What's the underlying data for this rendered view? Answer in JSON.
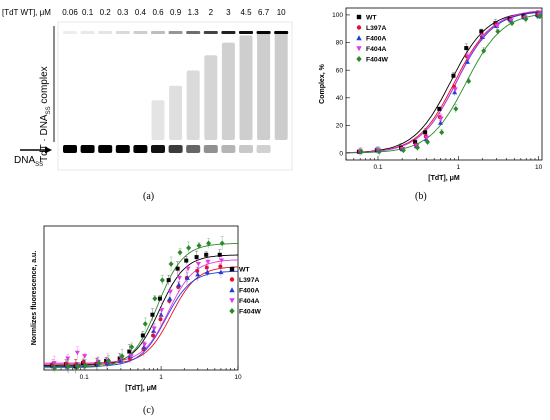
{
  "panel_a": {
    "header_label": "[TdT WT], μM",
    "concentrations": [
      "0.06",
      "0.1",
      "0.2",
      "0.3",
      "0.4",
      "0.6",
      "0.9",
      "1.3",
      "2",
      "3",
      "4.5",
      "6.7",
      "10"
    ],
    "complex_label": "TdT · DNA",
    "complex_sub": "SS",
    "complex_suffix": " complex",
    "free_label": "DNA",
    "free_sub": "SS",
    "complex_fraction": [
      0.02,
      0.04,
      0.06,
      0.1,
      0.15,
      0.22,
      0.38,
      0.55,
      0.72,
      0.86,
      0.94,
      0.97,
      0.99
    ],
    "caption": "(a)"
  },
  "panel_b": {
    "caption": "(b)"
  },
  "panel_c": {
    "caption": "(c)"
  },
  "chart_data": [
    {
      "type": "scatter",
      "title": "",
      "xlabel": "[TdT], μM",
      "ylabel": "Complex, %",
      "xscale": "log",
      "xlim": [
        0.04,
        11
      ],
      "ylim": [
        -5,
        105
      ],
      "xticks": [
        "0.1",
        "1",
        "10"
      ],
      "yticks": [
        "0",
        "20",
        "40",
        "60",
        "80",
        "100"
      ],
      "legend_position": "top-left",
      "x": [
        0.06,
        0.1,
        0.2,
        0.3,
        0.4,
        0.6,
        0.9,
        1.3,
        2,
        3,
        4.5,
        6.7,
        10
      ],
      "series": [
        {
          "name": "WT",
          "color": "#000000",
          "marker": "square",
          "values": [
            1,
            2,
            4,
            8,
            15,
            32,
            56,
            76,
            88,
            94,
            97,
            99,
            100
          ],
          "fit": {
            "ec50": 0.8,
            "hill": 1.9,
            "top": 103
          }
        },
        {
          "name": "L397A",
          "color": "#e8102a",
          "marker": "circle",
          "values": [
            1,
            2,
            3,
            6,
            12,
            26,
            48,
            70,
            84,
            93,
            96,
            98,
            100
          ],
          "fit": {
            "ec50": 0.9,
            "hill": 1.9,
            "top": 103
          }
        },
        {
          "name": "F400A",
          "color": "#1f3fd6",
          "marker": "triangle-up",
          "values": [
            1,
            2,
            3,
            5,
            10,
            22,
            44,
            66,
            84,
            92,
            96,
            98,
            99
          ],
          "fit": {
            "ec50": 0.95,
            "hill": 1.9,
            "top": 103
          }
        },
        {
          "name": "F404A",
          "color": "#e23ae5",
          "marker": "triangle-down",
          "values": [
            1,
            2,
            3,
            5,
            11,
            25,
            46,
            70,
            85,
            92,
            96,
            98,
            100
          ],
          "fit": {
            "ec50": 0.95,
            "hill": 1.9,
            "top": 104
          }
        },
        {
          "name": "F404W",
          "color": "#2a8a28",
          "marker": "diamond",
          "values": [
            1,
            1,
            2,
            4,
            8,
            15,
            32,
            52,
            74,
            88,
            94,
            97,
            99
          ],
          "fit": {
            "ec50": 1.25,
            "hill": 1.9,
            "top": 102
          }
        }
      ]
    },
    {
      "type": "scatter",
      "title": "",
      "xlabel": "[TdT], μM",
      "ylabel": "Normlizes fluorescence, a.u.",
      "xscale": "log",
      "xlim": [
        0.03,
        10
      ],
      "ylim": [
        0,
        1.25
      ],
      "xticks": [
        "0.1",
        "1",
        "10"
      ],
      "legend_position": "right",
      "x": [
        0.04,
        0.06,
        0.08,
        0.1,
        0.15,
        0.2,
        0.3,
        0.4,
        0.6,
        0.8,
        1.0,
        1.3,
        1.7,
        2.2,
        3,
        4,
        6
      ],
      "series": [
        {
          "name": "WT",
          "color": "#000000",
          "marker": "square",
          "values": [
            0.04,
            0.05,
            0.03,
            0.06,
            0.05,
            0.08,
            0.1,
            0.16,
            0.3,
            0.48,
            0.62,
            0.78,
            0.88,
            0.95,
            0.98,
            1.0,
            1.0
          ],
          "fit": {
            "ec50": 0.95,
            "hill": 2.6,
            "top": 1.0,
            "bottom": 0.04
          }
        },
        {
          "name": "L397A",
          "color": "#e8102a",
          "marker": "circle",
          "values": [
            0.04,
            0.05,
            0.05,
            0.07,
            0.06,
            0.06,
            0.08,
            0.1,
            0.18,
            0.3,
            0.44,
            0.6,
            0.72,
            0.8,
            0.86,
            0.89,
            0.9
          ],
          "fit": {
            "ec50": 1.35,
            "hill": 2.6,
            "top": 0.9,
            "bottom": 0.05
          }
        },
        {
          "name": "F400A",
          "color": "#1f3fd6",
          "marker": "triangle-up",
          "values": [
            0.03,
            0.03,
            0.04,
            0.04,
            0.05,
            0.06,
            0.08,
            0.12,
            0.2,
            0.34,
            0.48,
            0.62,
            0.74,
            0.8,
            0.83,
            0.85,
            0.85
          ],
          "fit": {
            "ec50": 1.15,
            "hill": 2.6,
            "top": 0.86,
            "bottom": 0.03
          }
        },
        {
          "name": "F404A",
          "color": "#e23ae5",
          "marker": "triangle-down",
          "values": [
            0.06,
            0.1,
            0.15,
            0.12,
            0.07,
            0.08,
            0.1,
            0.12,
            0.22,
            0.36,
            0.52,
            0.68,
            0.8,
            0.88,
            0.92,
            0.94,
            0.95
          ],
          "fit": {
            "ec50": 1.25,
            "hill": 2.6,
            "top": 0.96,
            "bottom": 0.06
          }
        },
        {
          "name": "F404W",
          "color": "#2a8a28",
          "marker": "diamond",
          "values": [
            0.02,
            0.03,
            0.03,
            0.04,
            0.06,
            0.08,
            0.12,
            0.2,
            0.4,
            0.62,
            0.78,
            0.92,
            1.02,
            1.06,
            1.08,
            1.1,
            1.1
          ],
          "fit": {
            "ec50": 0.9,
            "hill": 2.6,
            "top": 1.1,
            "bottom": 0.02
          }
        }
      ]
    }
  ]
}
